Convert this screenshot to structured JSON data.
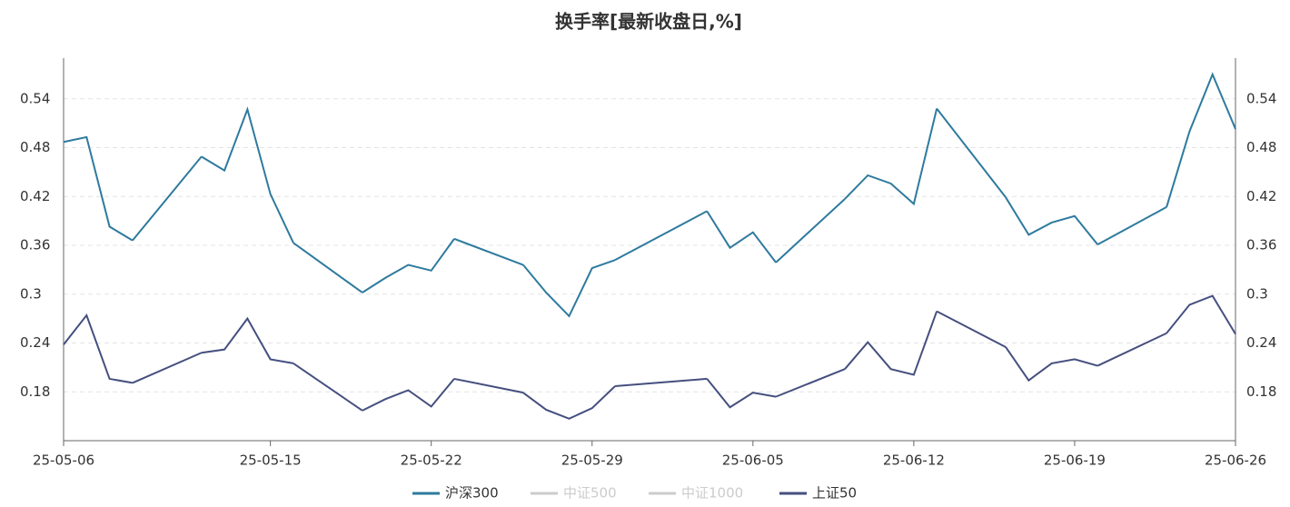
{
  "chart_data": {
    "type": "line",
    "title": "换手率[最新收盘日,%]",
    "categories": [
      "25-05-06",
      null,
      null,
      null,
      null,
      null,
      null,
      null,
      null,
      "25-05-15",
      null,
      null,
      null,
      null,
      null,
      null,
      "25-05-22",
      null,
      null,
      null,
      null,
      null,
      null,
      "25-05-29",
      null,
      null,
      null,
      null,
      null,
      null,
      "25-06-05",
      null,
      null,
      null,
      null,
      null,
      null,
      "25-06-12",
      null,
      null,
      null,
      null,
      null,
      null,
      "25-06-19",
      null,
      null,
      null,
      null,
      null,
      null,
      "25-06-26"
    ],
    "series": [
      {
        "name": "沪深300",
        "color": "#2e7a9e",
        "values": [
          0.487,
          0.493,
          0.383,
          0.366,
          null,
          null,
          0.469,
          0.452,
          0.527,
          0.423,
          0.363,
          null,
          null,
          0.302,
          0.32,
          0.336,
          0.329,
          0.368,
          null,
          null,
          0.336,
          0.302,
          0.273,
          0.332,
          0.342,
          null,
          null,
          null,
          0.402,
          0.357,
          0.376,
          0.339,
          null,
          null,
          0.417,
          0.446,
          0.436,
          0.411,
          0.528,
          null,
          null,
          0.419,
          0.373,
          0.388,
          0.396,
          0.361,
          null,
          null,
          0.407,
          0.5,
          0.57,
          0.503
        ]
      },
      {
        "name": "上证50",
        "color": "#454f7f",
        "values": [
          0.238,
          0.274,
          0.196,
          0.191,
          null,
          null,
          0.228,
          0.232,
          0.27,
          0.22,
          0.215,
          null,
          null,
          0.157,
          0.171,
          0.182,
          0.162,
          0.196,
          null,
          null,
          0.179,
          0.158,
          0.147,
          0.16,
          0.187,
          null,
          null,
          null,
          0.196,
          0.161,
          0.179,
          0.174,
          null,
          null,
          0.208,
          0.241,
          0.208,
          0.201,
          0.279,
          null,
          null,
          0.235,
          0.194,
          0.215,
          0.22,
          0.212,
          null,
          null,
          0.252,
          0.287,
          0.298,
          0.251
        ]
      }
    ],
    "inactive_series": [
      "中证500",
      "中证1000"
    ],
    "inactive_color": "#cccccc",
    "connect_gaps": true,
    "ylim": [
      0.12,
      0.59
    ],
    "yticks": [
      0.18,
      0.24,
      0.3,
      0.36,
      0.42,
      0.48,
      0.54
    ],
    "y2lim": [
      0.12,
      0.59
    ],
    "y2ticks": [
      0.18,
      0.24,
      0.3,
      0.36,
      0.42,
      0.48,
      0.54
    ],
    "grid": true
  }
}
